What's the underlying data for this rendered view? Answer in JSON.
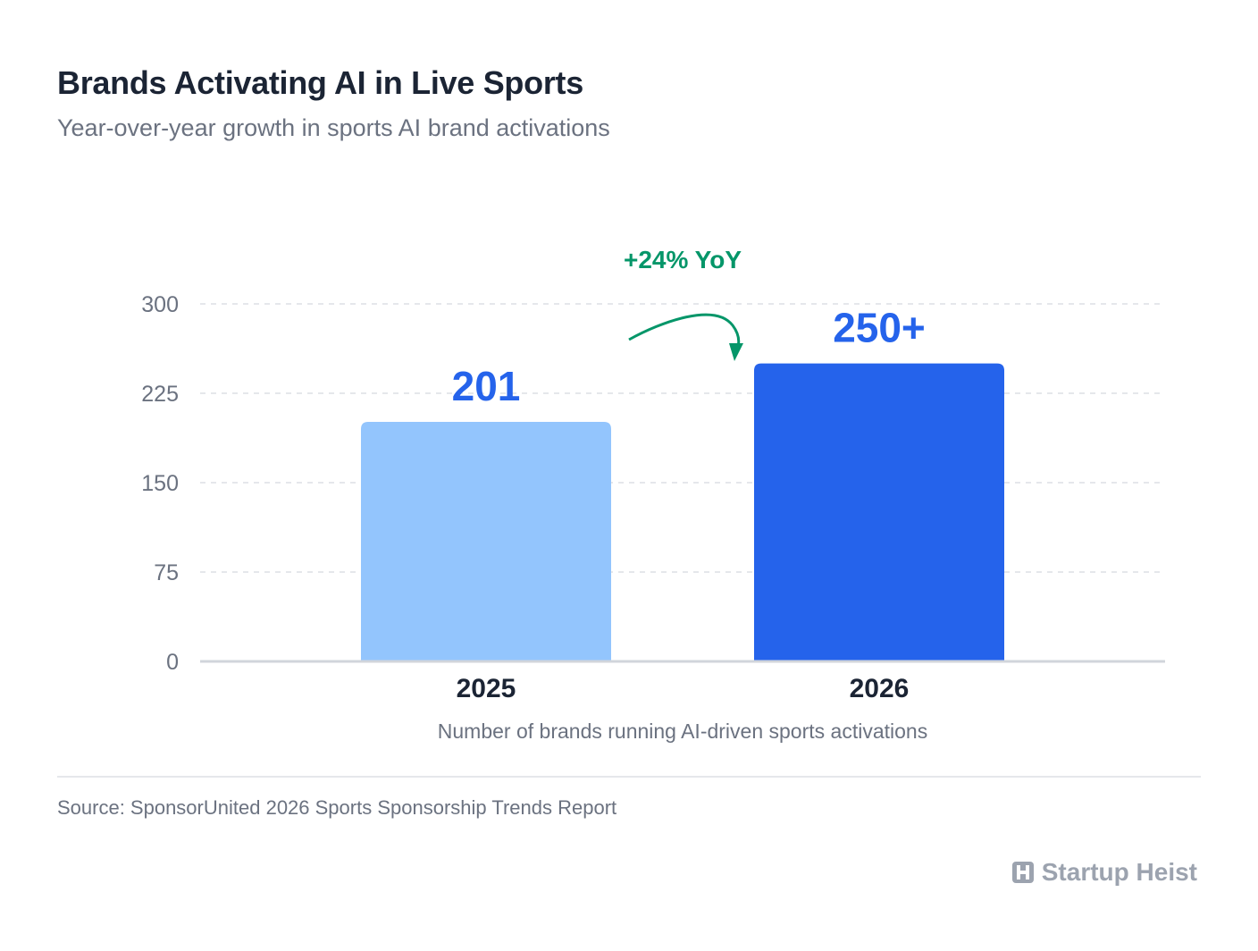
{
  "header": {
    "title": "Brands Activating AI in Live Sports",
    "subtitle": "Year-over-year growth in sports AI brand activations"
  },
  "chart_data": {
    "type": "bar",
    "categories": [
      "2025",
      "2026"
    ],
    "values": [
      201,
      250
    ],
    "value_labels": [
      "201",
      "250+"
    ],
    "bar_colors": [
      "#93c5fd",
      "#2563eb"
    ],
    "value_label_color": "#2563eb",
    "ylim": [
      0,
      300
    ],
    "yticks": [
      0,
      75,
      150,
      225,
      300
    ],
    "xlabel": "Number of brands running AI-driven sports activations",
    "ylabel": "",
    "grid": true,
    "annotation": {
      "text": "+24% YoY",
      "color": "#059669",
      "icon": "curved-arrow-icon"
    }
  },
  "footer": {
    "source": "Source: SponsorUnited 2026 Sports Sponsorship Trends Report",
    "brand": "Startup Heist",
    "brand_icon": "startup-heist-logo-icon"
  }
}
